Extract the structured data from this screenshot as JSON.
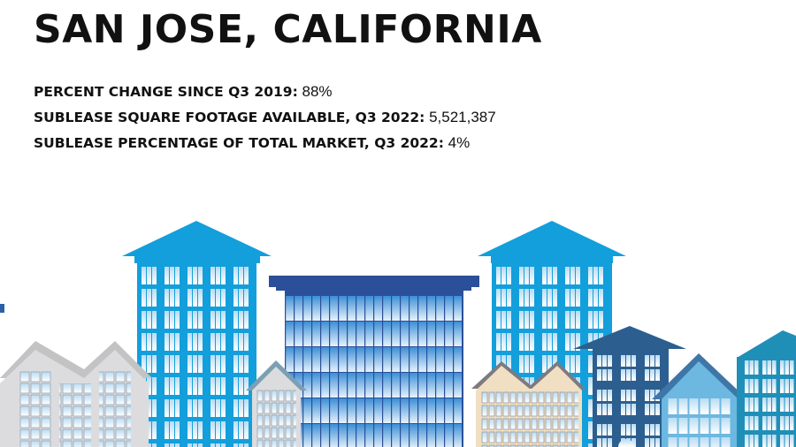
{
  "title": "SAN JOSE, CALIFORNIA",
  "stats": [
    {
      "label": "PERCENT CHANGE SINCE Q3 2019:",
      "value": "88%"
    },
    {
      "label": "SUBLEASE SQUARE FOOTAGE AVAILABLE, Q3 2022:",
      "value": "5,521,387"
    },
    {
      "label": "SUBLEASE PERCENTAGE OF TOTAL MARKET, Q3 2022:",
      "value": "4%"
    }
  ],
  "colors": {
    "tower_blue": "#139fdb",
    "glass_cap": "#2b4f98",
    "house_grey": "#dcdcde",
    "house_beige": "#f0dfc2",
    "dark_blue": "#2c5f8f",
    "light_blue": "#6cb8e0",
    "teal": "#1f8fb8"
  }
}
